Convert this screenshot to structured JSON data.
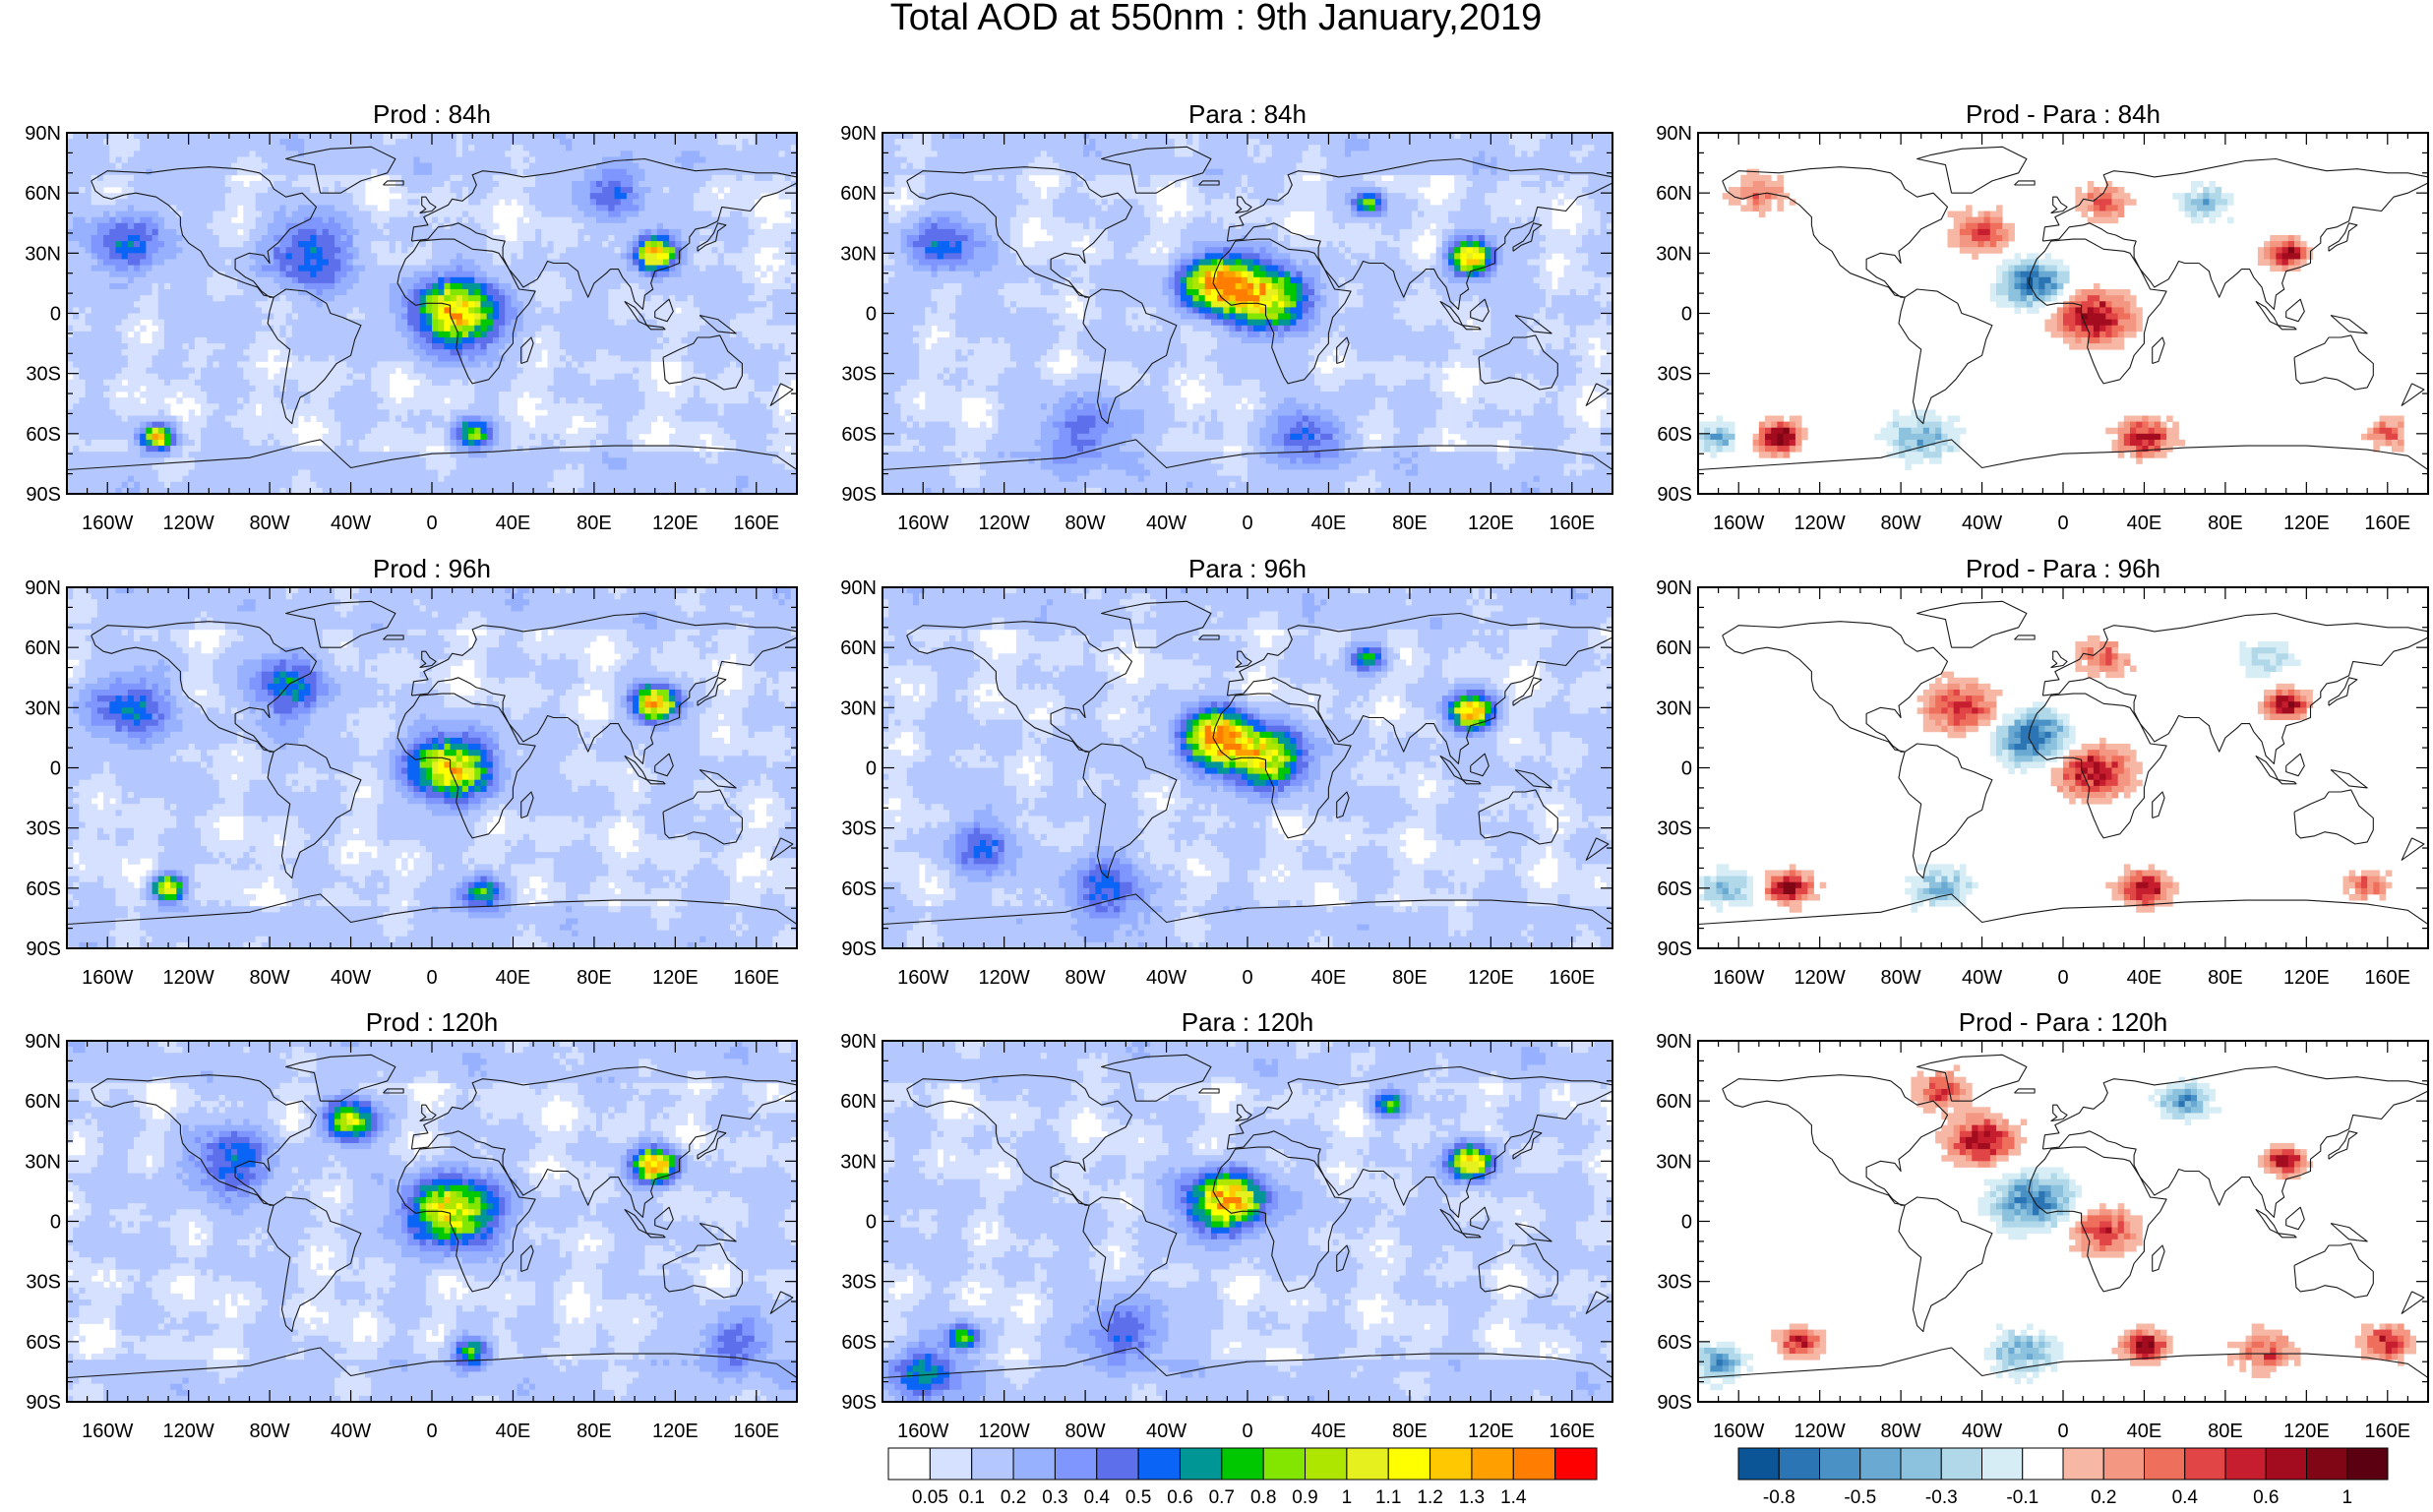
{
  "figure": {
    "title": "Total AOD at 550nm : 9th January,2019"
  },
  "panels": [
    {
      "row": 0,
      "col": 0,
      "title": "Prod : 84h",
      "kind": "aod",
      "variant": 0
    },
    {
      "row": 0,
      "col": 1,
      "title": "Para : 84h",
      "kind": "aod",
      "variant": 1
    },
    {
      "row": 0,
      "col": 2,
      "title": "Prod - Para : 84h",
      "kind": "diff",
      "variant": 0
    },
    {
      "row": 1,
      "col": 0,
      "title": "Prod : 96h",
      "kind": "aod",
      "variant": 2
    },
    {
      "row": 1,
      "col": 1,
      "title": "Para : 96h",
      "kind": "aod",
      "variant": 3
    },
    {
      "row": 1,
      "col": 2,
      "title": "Prod - Para : 96h",
      "kind": "diff",
      "variant": 1
    },
    {
      "row": 2,
      "col": 0,
      "title": "Prod : 120h",
      "kind": "aod",
      "variant": 4
    },
    {
      "row": 2,
      "col": 1,
      "title": "Para : 120h",
      "kind": "aod",
      "variant": 5
    },
    {
      "row": 2,
      "col": 2,
      "title": "Prod - Para : 120h",
      "kind": "diff",
      "variant": 2
    }
  ],
  "axes": {
    "lat_labels": [
      "90N",
      "60N",
      "30N",
      "0",
      "30S",
      "60S",
      "90S"
    ],
    "lat_values": [
      90,
      60,
      30,
      0,
      -30,
      -60,
      -90
    ],
    "lon_labels": [
      "160W",
      "120W",
      "80W",
      "40W",
      "0",
      "40E",
      "80E",
      "120E",
      "160E"
    ],
    "lon_values": [
      -160,
      -120,
      -80,
      -40,
      0,
      40,
      80,
      120,
      160
    ]
  },
  "colorbars": {
    "aod": {
      "colors": [
        "#ffffff",
        "#d6e1ff",
        "#b4c8ff",
        "#97b1ff",
        "#7f96ff",
        "#5e6fec",
        "#0a64f5",
        "#009696",
        "#00c800",
        "#82e600",
        "#afe600",
        "#e6f01e",
        "#ffff00",
        "#ffc800",
        "#ffa000",
        "#ff7d00",
        "#ff0000"
      ],
      "labels": [
        "0.05",
        "0.1",
        "0.2",
        "0.3",
        "0.4",
        "0.5",
        "0.6",
        "0.7",
        "0.8",
        "0.9",
        "1",
        "1.1",
        "1.2",
        "1.3",
        "1.4"
      ]
    },
    "diff": {
      "colors": [
        "#0b5597",
        "#2c75b4",
        "#4a91c6",
        "#69a9d2",
        "#8cc2de",
        "#b0d8e9",
        "#d7edf6",
        "#ffffff",
        "#f7b7a5",
        "#f39682",
        "#ee6f5c",
        "#e14545",
        "#c61e2e",
        "#a30c1e",
        "#800515",
        "#5a0010"
      ],
      "labels": [
        "-0.8",
        "-0.5",
        "-0.3",
        "-0.1",
        "0.2",
        "0.4",
        "0.6",
        "1"
      ]
    }
  }
}
